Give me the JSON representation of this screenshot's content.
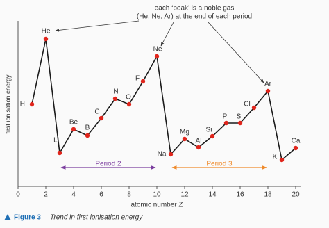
{
  "chart_data": {
    "type": "line",
    "y_label": "first ionisation energy",
    "x_label": "atomic number Z",
    "annotation_lines": [
      "each ‘peak’ is a noble gas",
      "(He, Ne, Ar) at the end of each period"
    ],
    "x": [
      1,
      2,
      3,
      4,
      5,
      6,
      7,
      8,
      9,
      10,
      11,
      12,
      13,
      14,
      15,
      16,
      17,
      18,
      19,
      20
    ],
    "values": [
      118,
      212,
      48,
      82,
      73,
      98,
      126,
      118,
      151,
      187,
      46,
      68,
      56,
      72,
      91,
      91,
      113,
      137,
      38,
      55
    ],
    "point_labels": [
      "H",
      "He",
      "Li",
      "Be",
      "B",
      "C",
      "N",
      "O",
      "F",
      "Ne",
      "Na",
      "Mg",
      "Al",
      "Si",
      "P",
      "S",
      "Cl",
      "Ar",
      "K",
      "Ca"
    ],
    "line_color": "#1a1a1a",
    "marker_color": "#e0251c",
    "xlim": [
      0,
      20
    ],
    "xticks": [
      0,
      2,
      4,
      6,
      8,
      10,
      12,
      14,
      16,
      18,
      20
    ],
    "ylim": [
      0,
      238
    ],
    "periods": [
      {
        "label": "Period 2",
        "start": 3,
        "end": 10,
        "color": "#7b3d9e"
      },
      {
        "label": "Period 3",
        "start": 11,
        "end": 18,
        "color": "#ef8a2a"
      }
    ],
    "caption_label": "Figure 3",
    "caption_text": "Trend in first ionisation energy"
  }
}
